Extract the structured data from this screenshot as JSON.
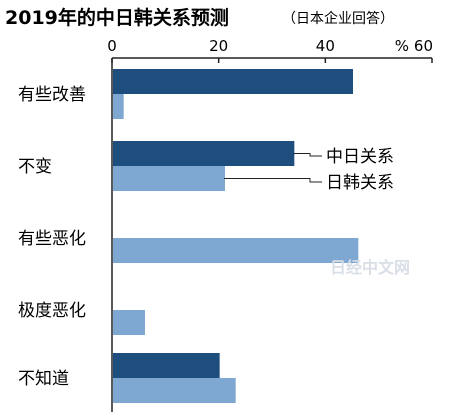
{
  "chart_data": {
    "type": "bar",
    "orientation": "horizontal",
    "title": "2019年的中日韩关系预测",
    "subtitle": "（日本企业回答）",
    "unit": "%",
    "xlim": [
      0,
      60
    ],
    "xticks": [
      0,
      20,
      40,
      60
    ],
    "categories": [
      "有些改善",
      "不变",
      "有些恶化",
      "极度恶化",
      "不知道"
    ],
    "series": [
      {
        "name": "中日关系",
        "color": "#1d4e7e",
        "values": [
          45,
          34,
          0,
          0,
          20
        ]
      },
      {
        "name": "日韩关系",
        "color": "#7ea7d1",
        "values": [
          2,
          21,
          46,
          6,
          23
        ]
      }
    ],
    "legend_position": "right, pointing to 不变 bars",
    "grid": false
  },
  "watermark": "日经中文网",
  "colors": {
    "dark_bar": "#1d4e7e",
    "light_bar": "#7ea7d1",
    "axis": "#222222",
    "watermark": "#d9dfe6"
  }
}
